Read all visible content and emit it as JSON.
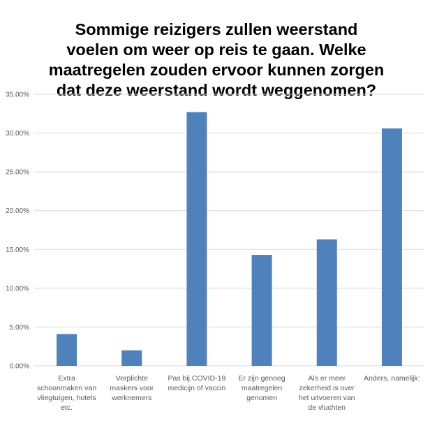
{
  "chart_data": {
    "type": "bar",
    "title": "Sommige reizigers zullen weerstand\nvoelen om weer op reis te gaan. Welke\nmaatregelen zouden ervoor kunnen zorgen\ndat deze weerstand wordt weggenomen?",
    "xlabel": "",
    "ylabel": "",
    "categories": [
      "Extra schoonmaken van vliegtuigen, hotels etc.",
      "Verplichte maskers voor werknemers",
      "Pas bij COVID-19 medicijn of vaccin",
      "Er zijn genoeg maatregelen genomen",
      "Als er meer zekerheid is over het uitvoeren van de vluchten",
      "Anders, namelijk:"
    ],
    "category_lines": [
      [
        "Extra",
        "schoonmaken van",
        "vliegtuigen, hotels",
        "etc."
      ],
      [
        "Verplichte",
        "maskers voor",
        "werknemers"
      ],
      [
        "Pas bij COVID-19",
        "medicijn of vaccin"
      ],
      [
        "Er zijn genoeg",
        "maatregelen",
        "genomen"
      ],
      [
        "Als er meer",
        "zekerheid is over",
        "het uitvoeren van",
        "de vluchten"
      ],
      [
        "Anders, namelijk:"
      ]
    ],
    "values": [
      4.1,
      2.0,
      32.7,
      14.3,
      16.3,
      30.6
    ],
    "ylim": [
      0,
      35
    ],
    "yticks": [
      0,
      5,
      10,
      15,
      20,
      25,
      30,
      35
    ],
    "ytick_labels": [
      "0.00%",
      "5.00%",
      "10.00%",
      "15.00%",
      "20.00%",
      "25.00%",
      "30.00%",
      "35.00%"
    ],
    "grid": true,
    "legend": false,
    "colors": {
      "bar": "#4F81BD",
      "grid": "#D9D9D9",
      "tick_text": "#595959",
      "title": "#000000"
    }
  }
}
